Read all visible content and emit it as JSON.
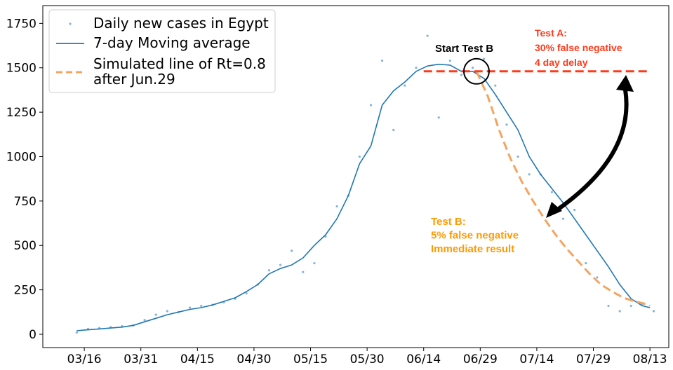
{
  "chart_data": {
    "type": "line",
    "xlim": [
      "03/05",
      "08/18"
    ],
    "ylim": [
      -75,
      1850
    ],
    "x_ticks": [
      "03/16",
      "03/31",
      "04/15",
      "04/30",
      "05/15",
      "05/30",
      "06/14",
      "06/29",
      "07/14",
      "07/29",
      "08/13"
    ],
    "y_ticks": [
      0,
      250,
      500,
      750,
      1000,
      1250,
      1500,
      1750
    ],
    "legend": {
      "placement": "top-left",
      "entries": [
        "Daily new cases in Egypt",
        "7-day Moving average",
        "Simulated line of Rt=0.8\nafter Jun.29"
      ]
    },
    "series": [
      {
        "name": "Daily new cases in Egypt",
        "kind": "scatter",
        "color": "#1f77b4",
        "x": [
          "03/14",
          "03/17",
          "03/20",
          "03/23",
          "03/26",
          "03/29",
          "04/01",
          "04/04",
          "04/07",
          "04/10",
          "04/13",
          "04/16",
          "04/19",
          "04/22",
          "04/25",
          "04/28",
          "05/01",
          "05/04",
          "05/07",
          "05/10",
          "05/13",
          "05/16",
          "05/19",
          "05/22",
          "05/25",
          "05/28",
          "05/31",
          "06/03",
          "06/06",
          "06/09",
          "06/12",
          "06/15",
          "06/18",
          "06/21",
          "06/24",
          "06/27",
          "06/30",
          "07/03",
          "07/06",
          "07/09",
          "07/12",
          "07/15",
          "07/18",
          "07/21",
          "07/24",
          "07/27",
          "07/30",
          "08/02",
          "08/05",
          "08/08",
          "08/11",
          "08/14"
        ],
        "values": [
          10,
          30,
          35,
          40,
          45,
          50,
          80,
          110,
          130,
          125,
          150,
          160,
          165,
          180,
          200,
          230,
          280,
          360,
          390,
          470,
          350,
          400,
          550,
          720,
          780,
          1000,
          1290,
          1540,
          1150,
          1400,
          1500,
          1680,
          1220,
          1540,
          1460,
          1500,
          1550,
          1400,
          1180,
          1000,
          900,
          900,
          800,
          650,
          700,
          400,
          320,
          160,
          130,
          160,
          170,
          130
        ]
      },
      {
        "name": "7-day Moving average",
        "kind": "line",
        "color": "#1f77b4",
        "x": [
          "03/14",
          "03/17",
          "03/20",
          "03/23",
          "03/26",
          "03/29",
          "04/01",
          "04/04",
          "04/07",
          "04/10",
          "04/13",
          "04/16",
          "04/19",
          "04/22",
          "04/25",
          "04/28",
          "05/01",
          "05/04",
          "05/07",
          "05/10",
          "05/13",
          "05/16",
          "05/19",
          "05/22",
          "05/25",
          "05/28",
          "05/31",
          "06/03",
          "06/06",
          "06/09",
          "06/12",
          "06/15",
          "06/18",
          "06/21",
          "06/24",
          "06/27",
          "06/30",
          "07/03",
          "07/06",
          "07/09",
          "07/12",
          "07/15",
          "07/18",
          "07/21",
          "07/24",
          "07/27",
          "07/30",
          "08/02",
          "08/05",
          "08/08",
          "08/11",
          "08/13"
        ],
        "values": [
          20,
          25,
          30,
          35,
          40,
          50,
          70,
          90,
          110,
          125,
          140,
          150,
          165,
          185,
          205,
          240,
          280,
          340,
          370,
          390,
          430,
          500,
          560,
          650,
          780,
          960,
          1060,
          1290,
          1370,
          1420,
          1480,
          1510,
          1520,
          1515,
          1480,
          1480,
          1440,
          1350,
          1250,
          1150,
          1000,
          900,
          820,
          740,
          650,
          560,
          470,
          380,
          280,
          200,
          160,
          150
        ]
      },
      {
        "name": "Simulated line of Rt=0.8\nafter Jun.29",
        "kind": "line-dashed",
        "color": "#f4a460",
        "x": [
          "06/28",
          "07/01",
          "07/04",
          "07/07",
          "07/10",
          "07/13",
          "07/16",
          "07/19",
          "07/22",
          "07/25",
          "07/28",
          "07/31",
          "08/03",
          "08/06",
          "08/09",
          "08/12",
          "08/13"
        ],
        "values": [
          1480,
          1340,
          1150,
          990,
          860,
          750,
          650,
          560,
          480,
          410,
          340,
          280,
          240,
          205,
          185,
          170,
          160
        ]
      },
      {
        "name": "",
        "kind": "line-dashed",
        "color": "#ff3a1a",
        "x": [
          "06/14",
          "08/13"
        ],
        "values": [
          1480,
          1480
        ]
      }
    ],
    "annotations": [
      {
        "text": "Start Test B",
        "color": "#000000"
      },
      {
        "text": "Test A:\n30% false negative\n4 day delay",
        "color": "#ff3a1a"
      },
      {
        "text": "Test B:\n5% false negative\nImmediate result",
        "color": "#ff9a00"
      }
    ]
  }
}
